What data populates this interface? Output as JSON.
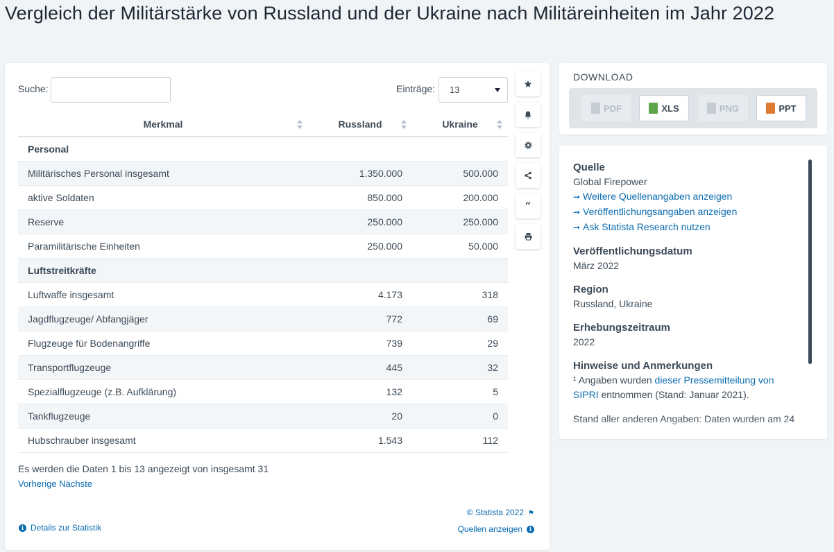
{
  "title": "Vergleich der Militärstärke von Russland und der Ukraine nach Militäreinheiten im Jahr 2022",
  "search": {
    "label": "Suche:",
    "value": ""
  },
  "entries": {
    "label": "Einträge:",
    "value": "13"
  },
  "table": {
    "headers": [
      "Merkmal",
      "Russland",
      "Ukraine"
    ],
    "rows": [
      {
        "label": "Personal",
        "ru": "",
        "ua": "",
        "group": true
      },
      {
        "label": "Militärisches Personal insgesamt",
        "ru": "1.350.000",
        "ua": "500.000"
      },
      {
        "label": "aktive Soldaten",
        "ru": "850.000",
        "ua": "200.000"
      },
      {
        "label": "Reserve",
        "ru": "250.000",
        "ua": "250.000"
      },
      {
        "label": "Paramilitärische Einheiten",
        "ru": "250.000",
        "ua": "50.000"
      },
      {
        "label": "Luftstreitkräfte",
        "ru": "",
        "ua": "",
        "group": true
      },
      {
        "label": "Luftwaffe insgesamt",
        "ru": "4.173",
        "ua": "318"
      },
      {
        "label": "Jagdflugzeuge/ Abfangjäger",
        "ru": "772",
        "ua": "69"
      },
      {
        "label": "Flugzeuge für Bodenangriffe",
        "ru": "739",
        "ua": "29"
      },
      {
        "label": "Transportflugzeuge",
        "ru": "445",
        "ua": "32"
      },
      {
        "label": "Spezialflugzeuge (z.B. Aufklärung)",
        "ru": "132",
        "ua": "5"
      },
      {
        "label": "Tankflugzeuge",
        "ru": "20",
        "ua": "0"
      },
      {
        "label": "Hubschrauber insgesamt",
        "ru": "1.543",
        "ua": "112"
      }
    ]
  },
  "footer": {
    "info": "Es werden die Daten 1 bis 13 angezeigt von insgesamt 31",
    "prev": "Vorherige",
    "next": "Nächste",
    "copyright": "© Statista 2022",
    "details": "Details zur Statistik",
    "sources": "Quellen anzeigen"
  },
  "tools": [
    "star-icon",
    "bell-icon",
    "gear-icon",
    "share-icon",
    "quote-icon",
    "print-icon"
  ],
  "download": {
    "title": "DOWNLOAD",
    "buttons": [
      {
        "label": "PDF",
        "enabled": false
      },
      {
        "label": "XLS",
        "enabled": true
      },
      {
        "label": "PNG",
        "enabled": false
      },
      {
        "label": "PPT",
        "enabled": true
      }
    ]
  },
  "info": {
    "source_head": "Quelle",
    "source": "Global Firepower",
    "links": [
      "Weitere Quellenangaben anzeigen",
      "Veröffentlichungsangaben anzeigen",
      "Ask Statista Research nutzen"
    ],
    "pubdate_head": "Veröffentlichungsdatum",
    "pubdate": "März 2022",
    "region_head": "Region",
    "region": "Russland, Ukraine",
    "period_head": "Erhebungszeitraum",
    "period": "2022",
    "notes_head": "Hinweise und Anmerkungen",
    "note_prefix": "¹ Angaben wurden ",
    "note_link": "dieser Pressemitteilung von SIPRI",
    "note_suffix": " entnommen (Stand: Januar 2021).",
    "note_more": "Stand aller anderen Angaben: Daten wurden am 24"
  },
  "colors": {
    "link": "#0b6bb0",
    "text": "#3c4a57",
    "title": "#1c2733",
    "stripe": "#f3f6f9"
  }
}
